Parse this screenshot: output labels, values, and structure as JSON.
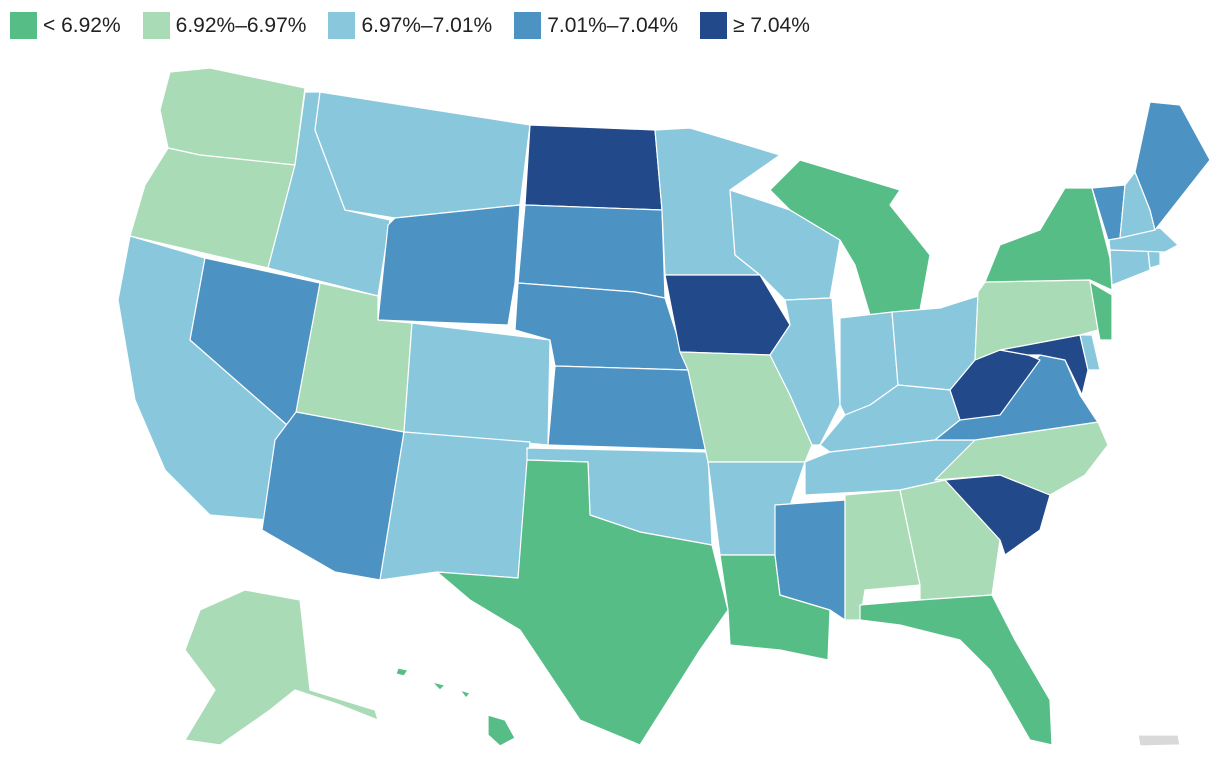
{
  "legend": {
    "bins": [
      {
        "label": "< 6.92%",
        "color": "#57bd86",
        "key": "b1"
      },
      {
        "label": "6.92%–6.97%",
        "color": "#a9dbb6",
        "key": "b2"
      },
      {
        "label": "6.97%–7.01%",
        "color": "#89c7dd",
        "key": "b3"
      },
      {
        "label": "7.01%–7.04%",
        "color": "#4c92c2",
        "key": "b4"
      },
      {
        "label": "≥ 7.04%",
        "color": "#22498a",
        "key": "b5"
      }
    ],
    "no_data_color": "#d9d9d9"
  },
  "states": {
    "WA": "b2",
    "OR": "b2",
    "CA": "b3",
    "ID": "b3",
    "NV": "b4",
    "MT": "b3",
    "WY": "b4",
    "UT": "b2",
    "AZ": "b4",
    "CO": "b3",
    "NM": "b3",
    "ND": "b5",
    "SD": "b4",
    "NE": "b4",
    "KS": "b4",
    "OK": "b3",
    "TX": "b1",
    "MN": "b3",
    "IA": "b5",
    "MO": "b2",
    "AR": "b3",
    "LA": "b1",
    "WI": "b3",
    "IL": "b3",
    "MS": "b4",
    "MI": "b1",
    "IN": "b3",
    "OH": "b3",
    "KY": "b3",
    "TN": "b3",
    "AL": "b2",
    "GA": "b2",
    "FL": "b1",
    "SC": "b5",
    "NC": "b2",
    "VA": "b4",
    "WV": "b5",
    "MD": "b5",
    "DE": "b3",
    "PA": "b2",
    "NJ": "b1",
    "NY": "b1",
    "CT": "b3",
    "RI": "b3",
    "MA": "b3",
    "VT": "b4",
    "NH": "b3",
    "ME": "b4",
    "AK": "b2",
    "HI": "b1",
    "PR": "none"
  }
}
